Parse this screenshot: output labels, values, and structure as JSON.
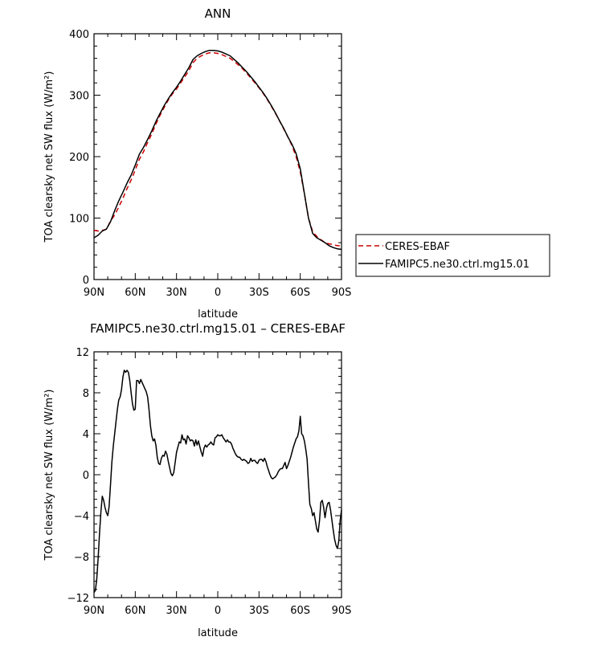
{
  "chart_data": [
    {
      "type": "line",
      "title": "ANN",
      "xlabel": "latitude",
      "ylabel": "TOA clearsky net SW flux (W/m²)",
      "xlim": [
        90,
        -90
      ],
      "ylim": [
        0,
        400
      ],
      "x_ticks": [
        "90N",
        "60N",
        "30N",
        "0",
        "30S",
        "60S",
        "90S"
      ],
      "x_tick_values": [
        90,
        60,
        30,
        0,
        -30,
        -60,
        -90
      ],
      "y_ticks": [
        0,
        100,
        200,
        300,
        400
      ],
      "legend_position": "right",
      "series": [
        {
          "name": "CERES-EBAF",
          "color": "#cc0000",
          "dash": "dashed",
          "x": [
            90,
            87,
            84,
            81,
            78,
            75,
            72,
            69,
            66,
            63,
            60,
            57,
            54,
            51,
            48,
            45,
            42,
            39,
            36,
            33,
            30,
            27,
            24,
            21,
            18,
            15,
            12,
            9,
            6,
            3,
            0,
            -3,
            -6,
            -9,
            -12,
            -15,
            -18,
            -21,
            -24,
            -27,
            -30,
            -33,
            -36,
            -39,
            -42,
            -45,
            -48,
            -51,
            -54,
            -57,
            -60,
            -63,
            -66,
            -69,
            -72,
            -75,
            -78,
            -81,
            -84,
            -87,
            -90
          ],
          "y": [
            80,
            79,
            80,
            82,
            95,
            105,
            118,
            132,
            148,
            162,
            178,
            196,
            208,
            223,
            237,
            253,
            267,
            280,
            292,
            302,
            310,
            320,
            330,
            340,
            353,
            360,
            364,
            367,
            369,
            369,
            368,
            366,
            363,
            360,
            355,
            349,
            343,
            336,
            328,
            320,
            312,
            303,
            293,
            282,
            270,
            258,
            245,
            232,
            218,
            200,
            175,
            140,
            100,
            78,
            70,
            65,
            60,
            58,
            57,
            55,
            55
          ]
        },
        {
          "name": "FAMIPC5.ne30.ctrl.mg15.01",
          "color": "#000000",
          "dash": "solid",
          "x": [
            90,
            87,
            84,
            81,
            78,
            75,
            72,
            69,
            66,
            63,
            60,
            57,
            54,
            51,
            48,
            45,
            42,
            39,
            36,
            33,
            30,
            27,
            24,
            21,
            18,
            15,
            12,
            9,
            6,
            3,
            0,
            -3,
            -6,
            -9,
            -12,
            -15,
            -18,
            -21,
            -24,
            -27,
            -30,
            -33,
            -36,
            -39,
            -42,
            -45,
            -48,
            -51,
            -54,
            -57,
            -60,
            -63,
            -66,
            -69,
            -72,
            -75,
            -78,
            -81,
            -84,
            -87,
            -90
          ],
          "y": [
            68,
            72,
            79,
            82,
            94,
            112,
            128,
            142,
            157,
            170,
            186,
            204,
            215,
            228,
            242,
            257,
            270,
            283,
            294,
            304,
            313,
            323,
            334,
            345,
            358,
            364,
            368,
            371,
            373,
            373,
            372,
            370,
            367,
            364,
            358,
            352,
            345,
            338,
            330,
            322,
            313,
            304,
            294,
            283,
            271,
            258,
            246,
            232,
            220,
            205,
            180,
            140,
            100,
            75,
            68,
            64,
            60,
            55,
            52,
            50,
            49
          ]
        }
      ]
    },
    {
      "type": "line",
      "title": "FAMIPC5.ne30.ctrl.mg15.01  –  CERES-EBAF",
      "xlabel": "latitude",
      "ylabel": "TOA clearsky net SW flux (W/m²)",
      "xlim": [
        90,
        -90
      ],
      "ylim": [
        -12,
        12
      ],
      "x_ticks": [
        "90N",
        "60N",
        "30N",
        "0",
        "30S",
        "60S",
        "90S"
      ],
      "x_tick_values": [
        90,
        60,
        30,
        0,
        -30,
        -60,
        -90
      ],
      "y_ticks": [
        -12,
        -8,
        -4,
        0,
        4,
        8,
        12
      ],
      "series": [
        {
          "name": "FAMIPC5.ne30.ctrl.mg15.01",
          "color": "#000000",
          "dash": "solid",
          "x": [
            90,
            89,
            88,
            87,
            86,
            85,
            84,
            83,
            82,
            81,
            80,
            79,
            78,
            77,
            76,
            75,
            74,
            73,
            72,
            71,
            70,
            69,
            68,
            67,
            66,
            65,
            64,
            63,
            62,
            61,
            60,
            59,
            58,
            57,
            56,
            55,
            54,
            53,
            52,
            51,
            50,
            49,
            48,
            47,
            46,
            45,
            44,
            43,
            42,
            41,
            40,
            39,
            38,
            37,
            36,
            35,
            34,
            33,
            32,
            31,
            30,
            29,
            28,
            27,
            26,
            25,
            24,
            23,
            22,
            21,
            20,
            19,
            18,
            17,
            16,
            15,
            14,
            13,
            12,
            11,
            10,
            9,
            8,
            7,
            6,
            5,
            4,
            3,
            2,
            1,
            0,
            -1,
            -2,
            -3,
            -4,
            -5,
            -6,
            -7,
            -8,
            -9,
            -10,
            -11,
            -12,
            -13,
            -14,
            -15,
            -16,
            -17,
            -18,
            -19,
            -20,
            -21,
            -22,
            -23,
            -24,
            -25,
            -26,
            -27,
            -28,
            -29,
            -30,
            -31,
            -32,
            -33,
            -34,
            -35,
            -36,
            -37,
            -38,
            -39,
            -40,
            -41,
            -42,
            -43,
            -44,
            -45,
            -46,
            -47,
            -48,
            -49,
            -50,
            -51,
            -52,
            -53,
            -54,
            -55,
            -56,
            -57,
            -58,
            -59,
            -60,
            -61,
            -62,
            -63,
            -64,
            -65,
            -66,
            -67,
            -68,
            -69,
            -70,
            -71,
            -72,
            -73,
            -74,
            -75,
            -76,
            -77,
            -78,
            -79,
            -80,
            -81,
            -82,
            -83,
            -84,
            -85,
            -86,
            -87,
            -88,
            -89,
            -90
          ],
          "y": [
            -11.5,
            -11.3,
            -10.2,
            -8.2,
            -5.8,
            -3.6,
            -2.1,
            -2.5,
            -3.2,
            -3.7,
            -4.0,
            -3.1,
            -1.0,
            1.2,
            2.8,
            4.0,
            5.2,
            6.4,
            7.3,
            7.6,
            8.3,
            9.5,
            10.2,
            10.0,
            10.2,
            10.0,
            9.2,
            8.0,
            6.9,
            6.3,
            6.4,
            9.2,
            9.2,
            8.9,
            9.3,
            9.0,
            8.7,
            8.4,
            8.1,
            7.6,
            6.4,
            4.8,
            3.8,
            3.3,
            3.5,
            2.9,
            1.7,
            1.1,
            1.0,
            1.6,
            1.9,
            1.8,
            2.3,
            2.0,
            1.3,
            0.7,
            0.1,
            -0.1,
            0.2,
            1.2,
            2.2,
            2.7,
            3.2,
            3.1,
            3.9,
            3.4,
            3.5,
            3.0,
            3.8,
            3.6,
            3.3,
            3.4,
            3.3,
            2.8,
            3.4,
            2.9,
            3.3,
            2.7,
            2.2,
            1.8,
            2.6,
            2.9,
            2.7,
            2.9,
            3.0,
            3.2,
            3.0,
            2.9,
            3.6,
            3.7,
            3.9,
            3.8,
            3.8,
            3.9,
            3.6,
            3.4,
            3.2,
            3.4,
            3.2,
            3.2,
            3.0,
            2.6,
            2.3,
            2.0,
            1.8,
            1.7,
            1.7,
            1.5,
            1.4,
            1.5,
            1.4,
            1.3,
            1.1,
            1.2,
            1.6,
            1.3,
            1.4,
            1.4,
            1.2,
            1.1,
            1.4,
            1.5,
            1.5,
            1.3,
            1.6,
            1.3,
            0.8,
            0.4,
            0.0,
            -0.3,
            -0.4,
            -0.3,
            -0.2,
            0.0,
            0.3,
            0.5,
            0.6,
            0.6,
            0.9,
            1.2,
            0.6,
            0.9,
            1.3,
            1.7,
            2.2,
            2.7,
            3.1,
            3.5,
            3.7,
            4.3,
            5.7,
            4.0,
            3.8,
            3.3,
            2.5,
            1.5,
            -0.8,
            -2.9,
            -3.3,
            -4.0,
            -3.7,
            -4.5,
            -5.3,
            -5.6,
            -4.5,
            -2.7,
            -2.5,
            -3.2,
            -4.2,
            -3.3,
            -2.8,
            -2.7,
            -3.4,
            -4.4,
            -5.4,
            -6.3,
            -6.9,
            -7.2,
            -6.5,
            -4.5,
            -3.4
          ]
        }
      ]
    }
  ]
}
